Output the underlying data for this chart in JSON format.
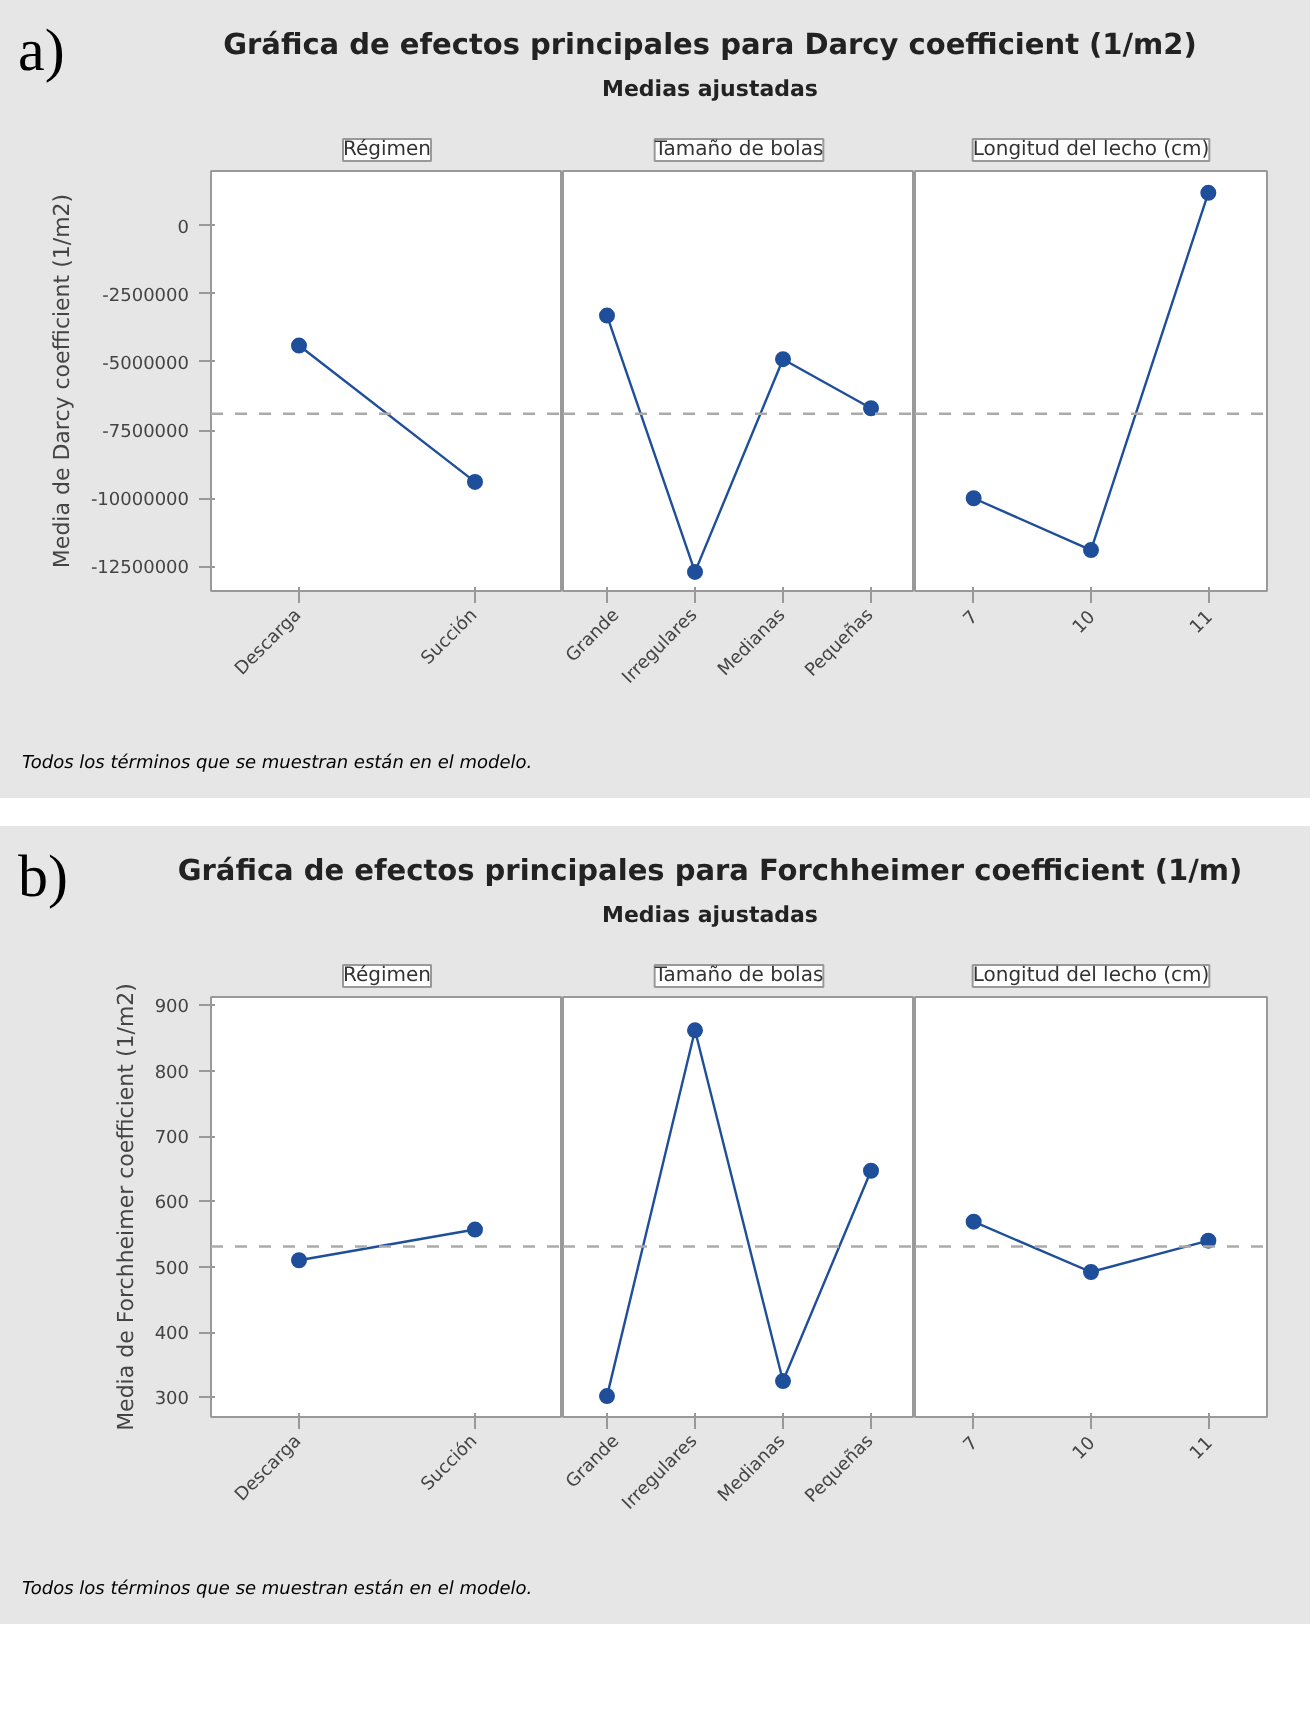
{
  "chart_data": [
    {
      "type": "line",
      "title": "Gráfica de efectos principales para Darcy coefficient (1/m2)\nMedias ajustadas",
      "xlabel": "Régimen",
      "ylabel": "Media de Darcy coefficient (1/m2)",
      "annotations": [
        "a)",
        "Todos los términos que se muestran están en el modelo."
      ],
      "categories": [
        "Descarga",
        "Succión"
      ],
      "values": [
        -4400000,
        -9400000
      ],
      "color": "#1f4e9a",
      "ylim": [
        -13400000,
        2000000
      ],
      "yticks": [
        0,
        -2500000,
        -5000000,
        -7500000,
        -10000000,
        -12500000
      ],
      "ref_lines": [
        {
          "axis": "y",
          "value": -6900000,
          "color": "#aaaaaa",
          "line_style": "dashed"
        }
      ],
      "marker": "circle",
      "grid": false
    },
    {
      "type": "line",
      "xlabel": "Tamaño de bolas",
      "categories": [
        "Grande",
        "Irregulares",
        "Medianas",
        "Pequeñas"
      ],
      "values": [
        -3300000,
        -12700000,
        -4900000,
        -6700000
      ],
      "color": "#1f4e9a",
      "ylim": [
        -13400000,
        2000000
      ],
      "tick_labels": "x",
      "ref_lines": [
        {
          "axis": "y",
          "value": -6900000,
          "color": "#aaaaaa",
          "line_style": "dashed"
        }
      ],
      "marker": "circle",
      "grid": false
    },
    {
      "type": "line",
      "xlabel": "Longitud del lecho (cm)",
      "categories": [
        "7",
        "10",
        "11"
      ],
      "values": [
        -10000000,
        -11900000,
        1200000
      ],
      "color": "#1f4e9a",
      "ylim": [
        -13400000,
        2000000
      ],
      "tick_labels": "x",
      "ref_lines": [
        {
          "axis": "y",
          "value": -6900000,
          "color": "#aaaaaa",
          "line_style": "dashed"
        }
      ],
      "marker": "circle",
      "grid": false
    },
    {
      "type": "line",
      "title": "Gráfica de efectos principales para Forchheimer coefficient (1/m)\nMedias ajustadas",
      "xlabel": "Régimen",
      "ylabel": "Media de Forchheimer coefficient (1/m2)",
      "annotations": [
        "b)",
        "Todos los términos que se muestran están en el modelo."
      ],
      "categories": [
        "Descarga",
        "Succión"
      ],
      "values": [
        510,
        557
      ],
      "color": "#1f4e9a",
      "ylim": [
        270,
        913
      ],
      "yticks": [
        300,
        400,
        500,
        600,
        700,
        800,
        900
      ],
      "ref_lines": [
        {
          "axis": "y",
          "value": 531,
          "color": "#aaaaaa",
          "line_style": "dashed"
        }
      ],
      "marker": "circle",
      "grid": false
    },
    {
      "type": "line",
      "xlabel": "Tamaño de bolas",
      "categories": [
        "Grande",
        "Irregulares",
        "Medianas",
        "Pequeñas"
      ],
      "values": [
        302,
        862,
        325,
        647
      ],
      "color": "#1f4e9a",
      "ylim": [
        270,
        913
      ],
      "tick_labels": "x",
      "ref_lines": [
        {
          "axis": "y",
          "value": 531,
          "color": "#aaaaaa",
          "line_style": "dashed"
        }
      ],
      "marker": "circle",
      "grid": false
    },
    {
      "type": "line",
      "xlabel": "Longitud del lecho (cm)",
      "categories": [
        "7",
        "10",
        "11"
      ],
      "values": [
        569,
        492,
        540
      ],
      "color": "#1f4e9a",
      "ylim": [
        270,
        913
      ],
      "tick_labels": "x",
      "ref_lines": [
        {
          "axis": "y",
          "value": 531,
          "color": "#aaaaaa",
          "line_style": "dashed"
        }
      ],
      "marker": "circle",
      "grid": false
    }
  ]
}
